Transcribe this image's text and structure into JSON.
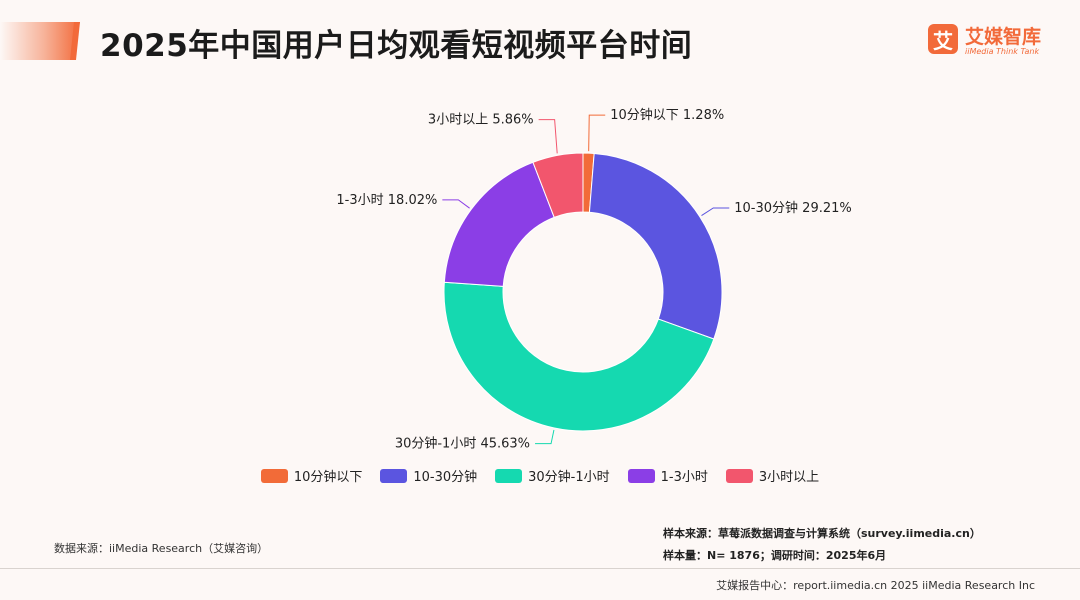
{
  "header": {
    "title": "2025年中国用户日均观看短视频平台时间"
  },
  "logo": {
    "mark": "艾",
    "name_cn": "艾媒智库",
    "name_en": "iiMedia Think Tank"
  },
  "chart_data": {
    "type": "pie",
    "donut": true,
    "title": "2025年中国用户日均观看短视频平台时间",
    "categories": [
      "10分钟以下",
      "10-30分钟",
      "30分钟-1小时",
      "1-3小时",
      "3小时以上"
    ],
    "values": [
      1.28,
      29.21,
      45.63,
      18.02,
      5.86
    ],
    "unit": "%",
    "colors": [
      "#f26b38",
      "#5b55e0",
      "#15d9b0",
      "#8b3ee6",
      "#f2566d"
    ],
    "data_labels": [
      "10分钟以下 1.28%",
      "10-30分钟 29.21%",
      "30分钟-1小时 45.63%",
      "1-3小时 18.02%",
      "3小时以上 5.86%"
    ],
    "legend_position": "bottom"
  },
  "notes": {
    "source": "数据来源：iiMedia Research（艾媒咨询）",
    "sample_source": "样本来源：草莓派数据调查与计算系统（survey.iimedia.cn）",
    "sample_size": "样本量：N= 1876；调研时间：2025年6月"
  },
  "footer": {
    "text": "艾媒报告中心：report.iimedia.cn   2025 iiMedia Research Inc"
  }
}
